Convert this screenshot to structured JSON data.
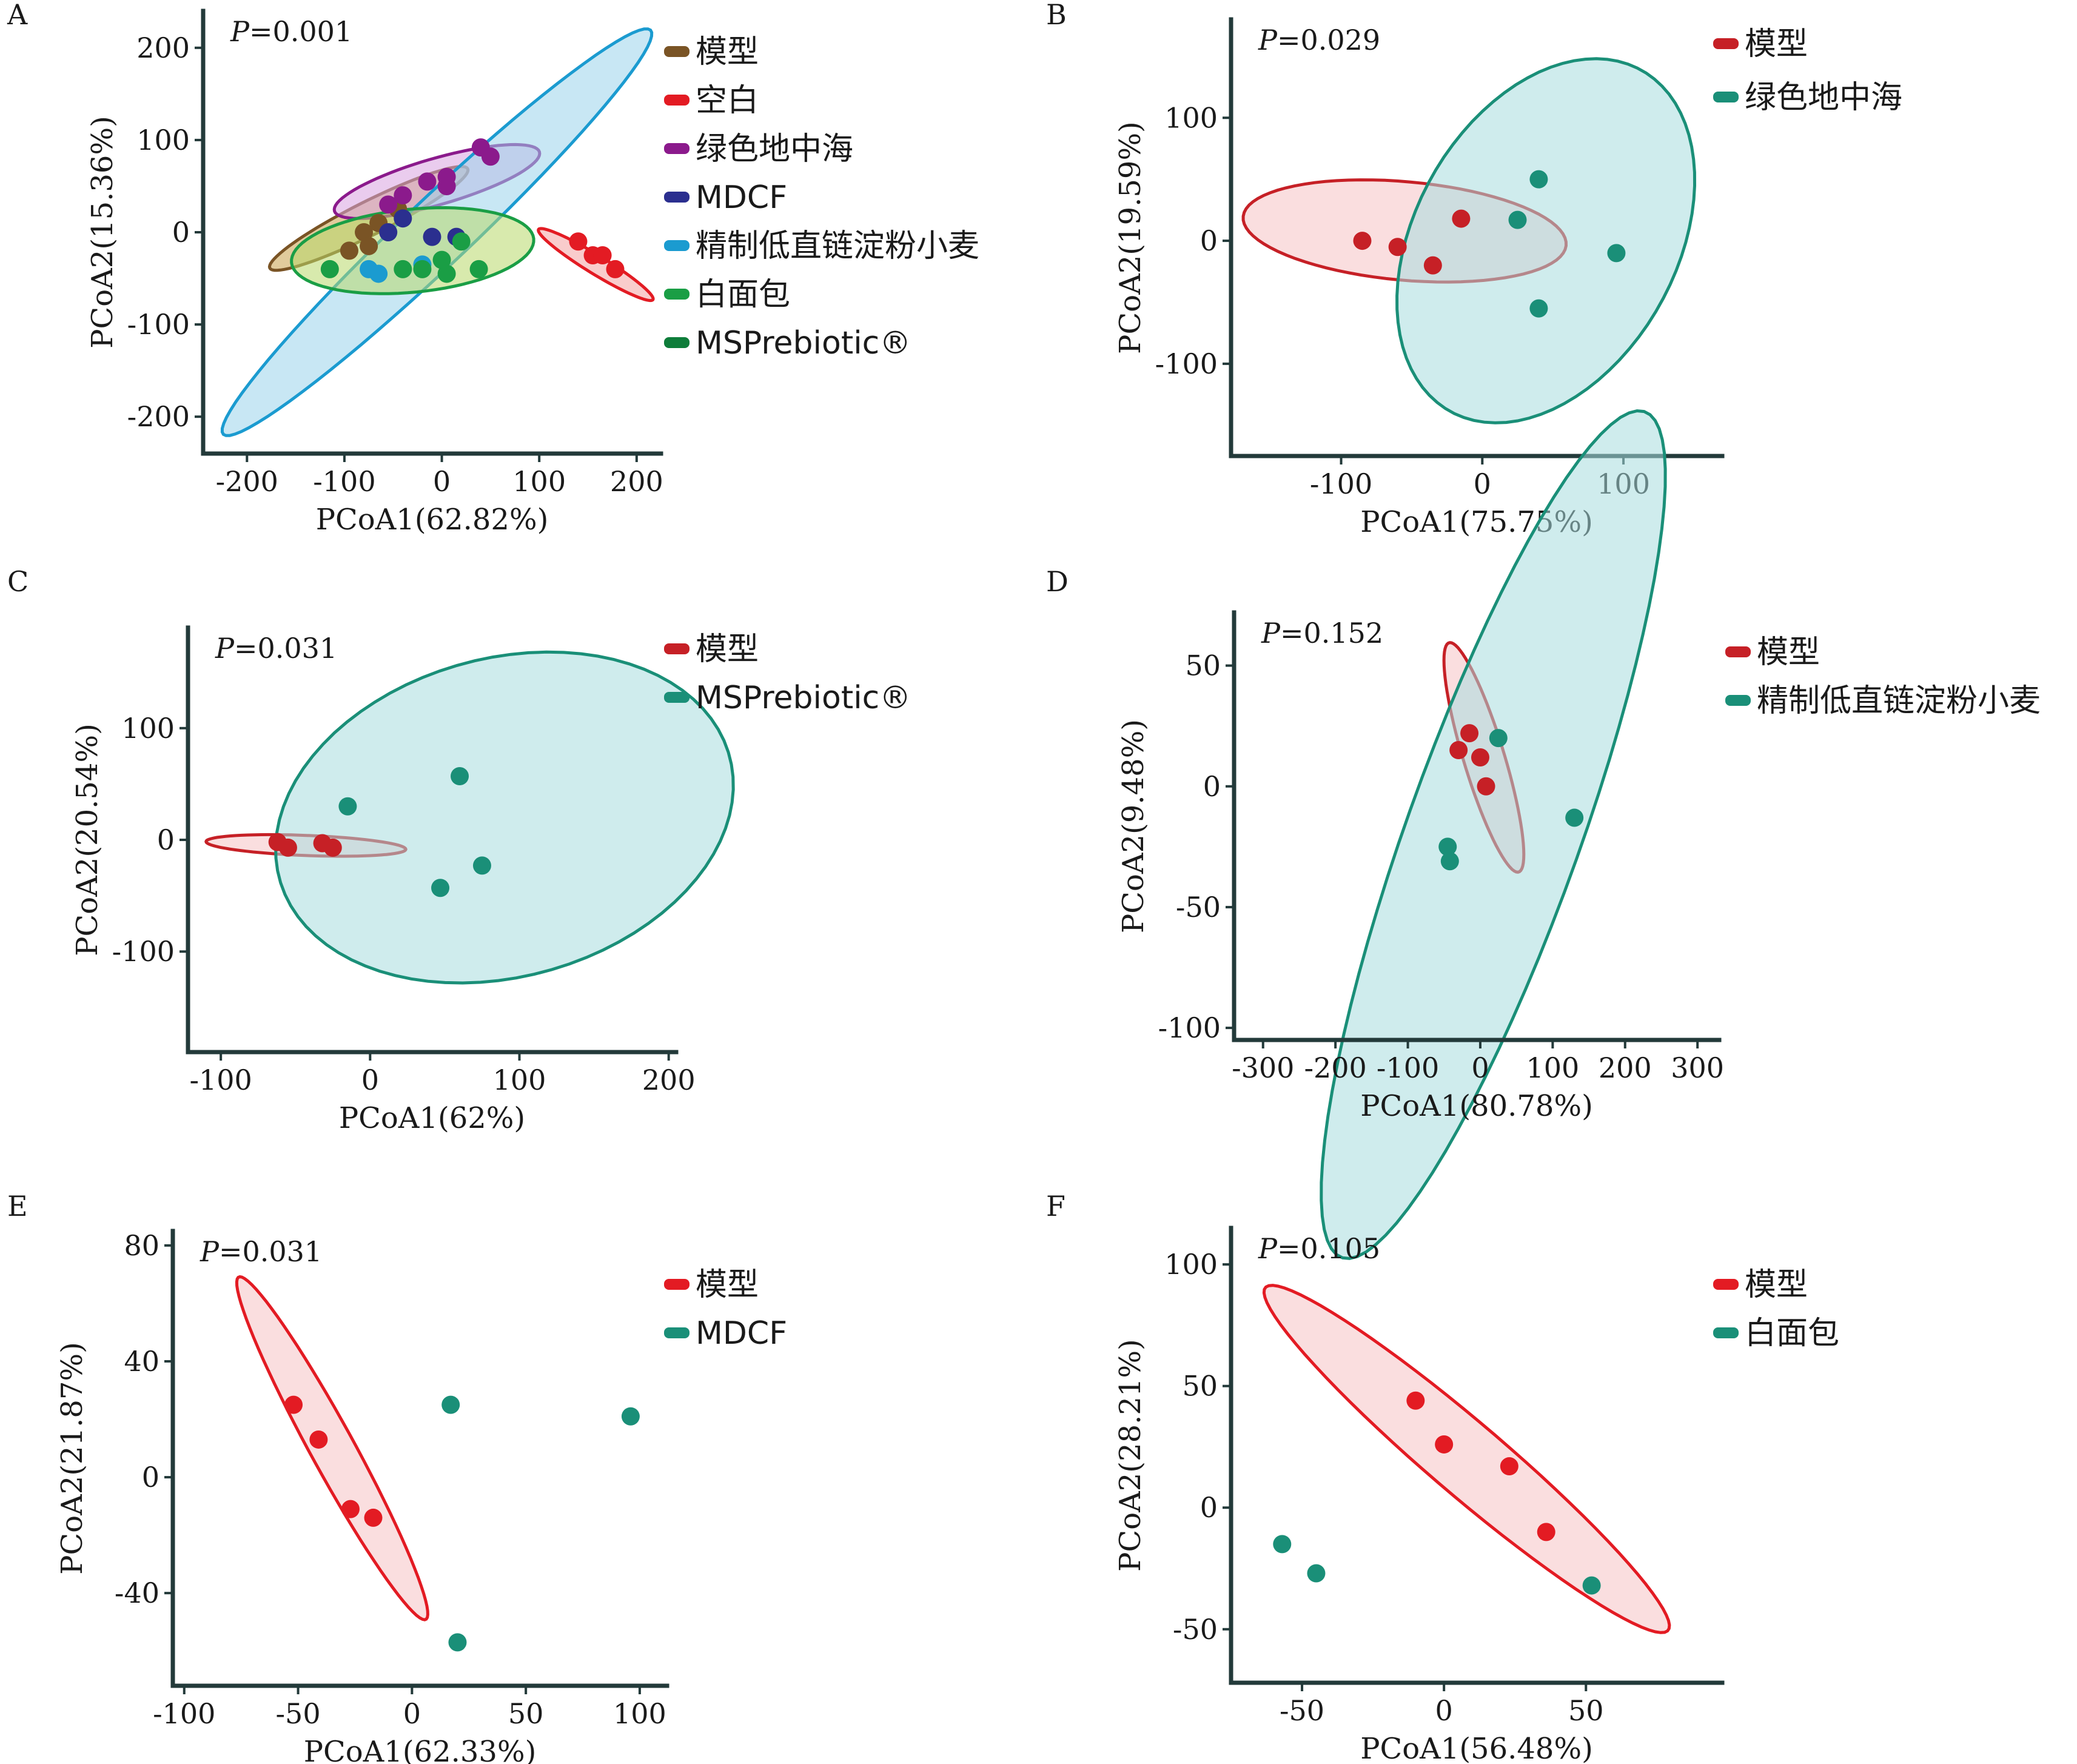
{
  "chart_data": [
    {
      "panel": "A",
      "type": "scatter",
      "p_value_label": "P",
      "p_value": "=0.001",
      "xlabel": "PCoA1(62.82%)",
      "ylabel": "PCoA2(15.36%)",
      "xlim": [
        -245,
        225
      ],
      "ylim": [
        -240,
        240
      ],
      "xticks": [
        -200,
        -100,
        0,
        100,
        200
      ],
      "yticks": [
        -200,
        -100,
        0,
        100,
        200
      ],
      "legend_position": "right",
      "series": [
        {
          "name": "模型",
          "color": "#7a5425",
          "ellipse_fill": "#c8a04a",
          "ellipse": {
            "cx": -75,
            "cy": 15,
            "rx": 115,
            "ry": 18,
            "angle": 28
          },
          "points": [
            [
              -95,
              -20
            ],
            [
              -80,
              0
            ],
            [
              -65,
              10
            ],
            [
              -45,
              25
            ],
            [
              -75,
              -15
            ]
          ]
        },
        {
          "name": "空白",
          "color": "#e31b23",
          "ellipse_fill": "#f4a3a3",
          "ellipse": {
            "cx": 158,
            "cy": -35,
            "rx": 70,
            "ry": 10,
            "angle": -33
          },
          "points": [
            [
              140,
              -10
            ],
            [
              155,
              -25
            ],
            [
              165,
              -25
            ],
            [
              178,
              -40
            ]
          ]
        },
        {
          "name": "绿色地中海",
          "color": "#8b1a8c",
          "ellipse_fill": "#d9a3e0",
          "ellipse": {
            "cx": -5,
            "cy": 55,
            "rx": 110,
            "ry": 25,
            "angle": 17
          },
          "points": [
            [
              -15,
              55
            ],
            [
              5,
              50
            ],
            [
              5,
              60
            ],
            [
              40,
              92
            ],
            [
              50,
              82
            ],
            [
              -55,
              30
            ],
            [
              -40,
              40
            ]
          ]
        },
        {
          "name": "MDCF",
          "color": "#2b2f8f",
          "ellipse_fill": "#8f95d0",
          "ellipse": null,
          "points": [
            [
              -10,
              -5
            ],
            [
              15,
              -5
            ],
            [
              -55,
              0
            ],
            [
              -40,
              15
            ]
          ]
        },
        {
          "name": "精制低直链淀粉小麦",
          "color": "#1b9bd0",
          "ellipse_fill": "#9bd3eb",
          "ellipse": {
            "cx": -5,
            "cy": 0,
            "rx": 310,
            "ry": 35,
            "angle": 45
          },
          "points": [
            [
              -75,
              -40
            ],
            [
              -65,
              -45
            ],
            [
              -20,
              -35
            ]
          ]
        },
        {
          "name": "白面包",
          "color": "#1a9e45",
          "ellipse_fill": "#b8d86a",
          "ellipse": {
            "cx": -30,
            "cy": -20,
            "rx": 125,
            "ry": 45,
            "angle": 6
          },
          "points": [
            [
              -115,
              -40
            ],
            [
              -40,
              -40
            ],
            [
              -20,
              -40
            ],
            [
              0,
              -30
            ],
            [
              5,
              -45
            ],
            [
              20,
              -10
            ],
            [
              38,
              -40
            ]
          ]
        },
        {
          "name": "MSPrebiotic®",
          "color": "#0e7d3a",
          "ellipse_fill": null,
          "ellipse": null,
          "points": []
        }
      ]
    },
    {
      "panel": "B",
      "type": "scatter",
      "p_value_label": "P",
      "p_value": "=0.029",
      "xlabel": "PCoA1(75.75%)",
      "ylabel": "PCoA2(19.59%)",
      "xlim": [
        -178,
        170
      ],
      "ylim": [
        -175,
        180
      ],
      "xticks": [
        -100,
        0,
        100
      ],
      "yticks": [
        -100,
        0,
        100
      ],
      "legend_position": "right",
      "series": [
        {
          "name": "模型",
          "color": "#c62026",
          "ellipse_fill": "#f6c3c4",
          "ellipse": {
            "cx": -55,
            "cy": 8,
            "rx": 115,
            "ry": 40,
            "angle": -6
          },
          "points": [
            [
              -85,
              0
            ],
            [
              -60,
              -5
            ],
            [
              -35,
              -20
            ],
            [
              -15,
              18
            ]
          ]
        },
        {
          "name": "绿色地中海",
          "color": "#1a8f78",
          "ellipse_fill": "#a8dcde",
          "ellipse": {
            "cx": 45,
            "cy": 0,
            "rx": 155,
            "ry": 95,
            "angle": 68
          },
          "points": [
            [
              40,
              50
            ],
            [
              25,
              17
            ],
            [
              95,
              -10
            ],
            [
              40,
              -55
            ]
          ]
        }
      ]
    },
    {
      "panel": "C",
      "type": "scatter",
      "p_value_label": "P",
      "p_value": "=0.031",
      "xlabel": "PCoA1(62%)",
      "ylabel": "PCoA2(20.54%)",
      "xlim": [
        -122,
        205
      ],
      "ylim": [
        -190,
        190
      ],
      "xticks": [
        -100,
        0,
        100,
        200
      ],
      "yticks": [
        -100,
        0,
        100
      ],
      "legend_position": "right",
      "series": [
        {
          "name": "模型",
          "color": "#c62026",
          "ellipse_fill": "#f6c3c4",
          "ellipse": {
            "cx": -43,
            "cy": -5,
            "rx": 67,
            "ry": 9,
            "angle": -3
          },
          "points": [
            [
              -62,
              -2
            ],
            [
              -55,
              -7
            ],
            [
              -32,
              -3
            ],
            [
              -25,
              -7
            ]
          ]
        },
        {
          "name": "MSPrebiotic®",
          "color": "#1a8f78",
          "ellipse_fill": "#a8dcde",
          "ellipse": {
            "cx": 90,
            "cy": 20,
            "rx": 165,
            "ry": 135,
            "angle": 40
          },
          "points": [
            [
              -15,
              30
            ],
            [
              60,
              57
            ],
            [
              75,
              -23
            ],
            [
              47,
              -43
            ]
          ]
        }
      ]
    },
    {
      "panel": "D",
      "type": "scatter",
      "p_value_label": "P",
      "p_value": "=0.152",
      "xlabel": "PCoA1(80.78%)",
      "ylabel": "PCoA2(9.48%)",
      "xlim": [
        -340,
        330
      ],
      "ylim": [
        -105,
        72
      ],
      "xticks": [
        -300,
        -200,
        -100,
        0,
        100,
        200,
        300
      ],
      "yticks": [
        -100,
        -50,
        0,
        50
      ],
      "legend_position": "right",
      "series": [
        {
          "name": "模型",
          "color": "#c62026",
          "ellipse_fill": "#f6c3c4",
          "ellipse": {
            "cx": 5,
            "cy": 12,
            "rx": 70,
            "ry": 20,
            "angle": -40
          },
          "points": [
            [
              -30,
              15
            ],
            [
              -15,
              22
            ],
            [
              0,
              12
            ],
            [
              8,
              0
            ]
          ]
        },
        {
          "name": "精制低直链淀粉小麦",
          "color": "#1a8f78",
          "ellipse_fill": "#a8dcde",
          "ellipse": {
            "cx": 18,
            "cy": -20,
            "rx": 285,
            "ry": 78,
            "angle": 35
          },
          "points": [
            [
              25,
              20
            ],
            [
              130,
              -13
            ],
            [
              -45,
              -25
            ],
            [
              -42,
              -31
            ]
          ]
        }
      ]
    },
    {
      "panel": "E",
      "type": "scatter",
      "p_value_label": "P",
      "p_value": "=0.031",
      "xlabel": "PCoA1(62.33%)",
      "ylabel": "PCoA2(21.87%)",
      "xlim": [
        -105,
        112
      ],
      "ylim": [
        -72,
        85
      ],
      "xticks": [
        -100,
        -50,
        0,
        50,
        100
      ],
      "yticks": [
        -40,
        0,
        40,
        80
      ],
      "legend_position": "right",
      "series": [
        {
          "name": "模型",
          "color": "#e31b23",
          "ellipse_fill": "#f6c3c4",
          "ellipse": {
            "cx": -35,
            "cy": 10,
            "rx": 72,
            "ry": 9,
            "angle": -55
          },
          "points": [
            [
              -52,
              25
            ],
            [
              -41,
              13
            ],
            [
              -27,
              -11
            ],
            [
              -17,
              -14
            ]
          ]
        },
        {
          "name": "MDCF",
          "color": "#1a8f78",
          "ellipse_fill": null,
          "ellipse": null,
          "points": [
            [
              17,
              25
            ],
            [
              96,
              21
            ],
            [
              20,
              -57
            ]
          ]
        }
      ]
    },
    {
      "panel": "F",
      "type": "scatter",
      "p_value_label": "P",
      "p_value": "=0.105",
      "xlabel": "PCoA1(56.48%)",
      "ylabel": "PCoA2(28.21%)",
      "xlim": [
        -75,
        98
      ],
      "ylim": [
        -72,
        115
      ],
      "xticks": [
        -50,
        0,
        50
      ],
      "yticks": [
        -50,
        0,
        50,
        100
      ],
      "legend_position": "right",
      "series": [
        {
          "name": "模型",
          "color": "#e31b23",
          "ellipse_fill": "#f6c3c4",
          "ellipse": {
            "cx": 8,
            "cy": 20,
            "rx": 100,
            "ry": 14,
            "angle": -45
          },
          "points": [
            [
              -10,
              44
            ],
            [
              0,
              26
            ],
            [
              23,
              17
            ],
            [
              36,
              -10
            ]
          ]
        },
        {
          "name": "白面包",
          "color": "#1a8f78",
          "ellipse_fill": null,
          "ellipse": null,
          "points": [
            [
              -57,
              -15
            ],
            [
              -45,
              -27
            ],
            [
              52,
              -32
            ]
          ]
        }
      ]
    }
  ]
}
